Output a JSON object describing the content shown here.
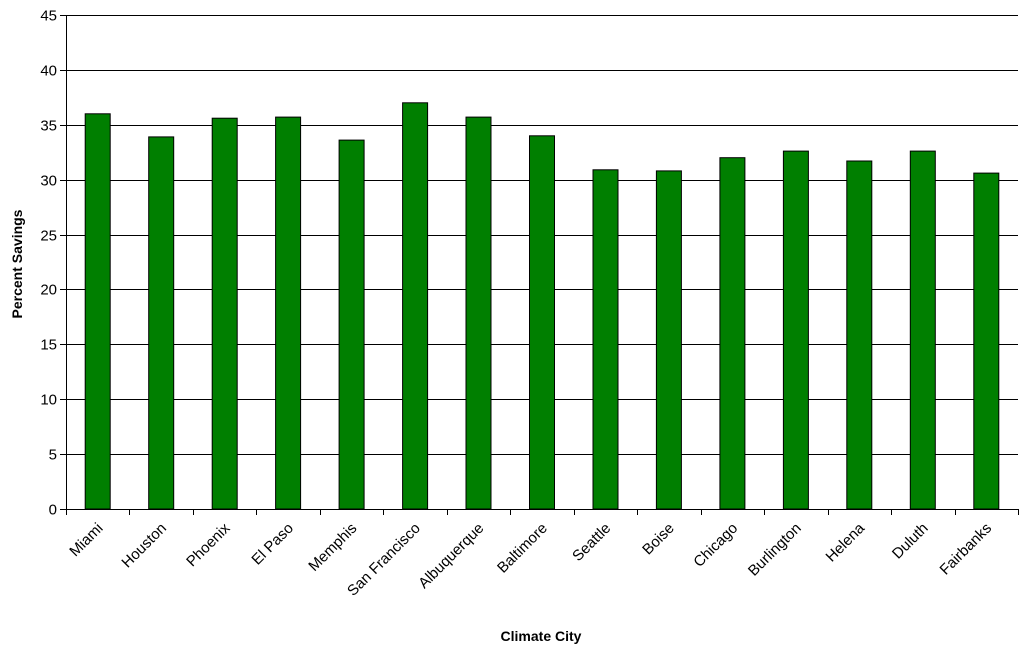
{
  "chart_data": {
    "type": "bar",
    "title": "",
    "xlabel": "Climate City",
    "ylabel": "Percent Savings",
    "ylim": [
      0,
      45
    ],
    "yticks": [
      0,
      5,
      10,
      15,
      20,
      25,
      30,
      35,
      40,
      45
    ],
    "grid": true,
    "legend": "none",
    "bar_color": "#007f00",
    "bar_edge_color": "#000000",
    "categories": [
      "Miami",
      "Houston",
      "Phoenix",
      "El Paso",
      "Memphis",
      "San Francisco",
      "Albuquerque",
      "Baltimore",
      "Seattle",
      "Boise",
      "Chicago",
      "Burlington",
      "Helena",
      "Duluth",
      "Fairbanks"
    ],
    "values": [
      36.0,
      33.9,
      35.6,
      35.7,
      33.6,
      37.0,
      35.7,
      34.0,
      30.9,
      30.8,
      32.0,
      32.6,
      31.7,
      32.6,
      30.6
    ]
  }
}
